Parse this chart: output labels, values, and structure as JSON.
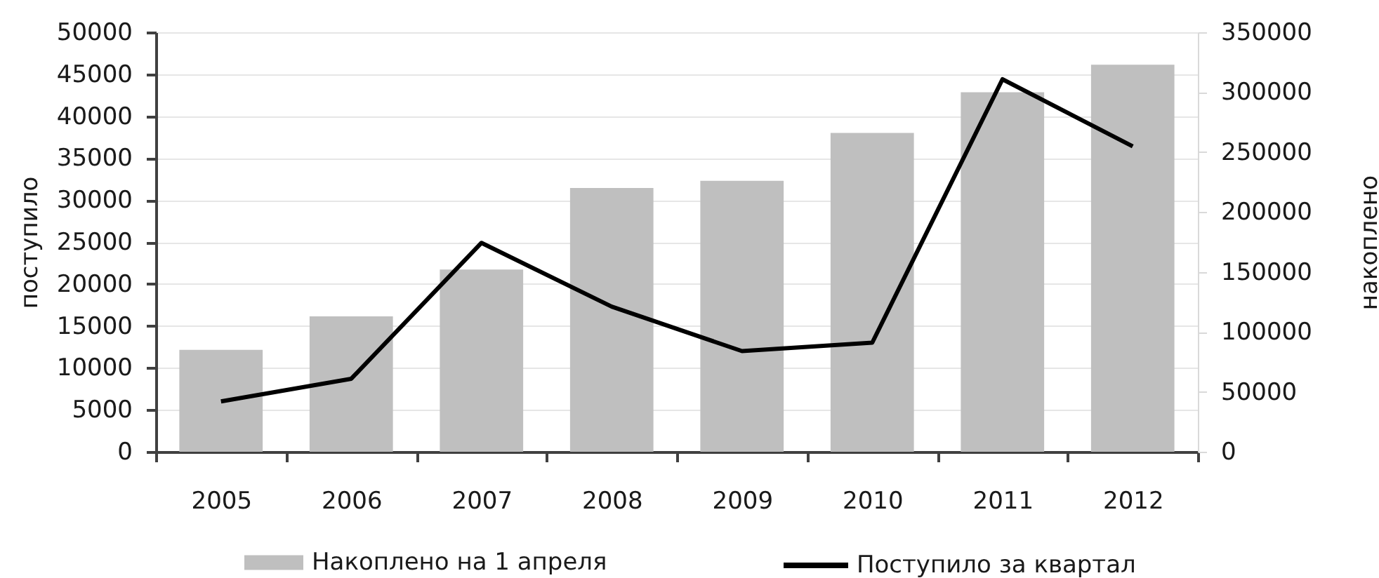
{
  "chart_data": {
    "type": "bar",
    "ylabel": "поступило",
    "y2label": "накоплено",
    "categories": [
      "2005",
      "2006",
      "2007",
      "2008",
      "2009",
      "2010",
      "2011",
      "2012"
    ],
    "series": [
      {
        "name": "Накоплено на 1 апреля",
        "axis": "y2",
        "color": "#bfbfbf",
        "values": [
          85000,
          113000,
          152000,
          220000,
          226000,
          266000,
          300000,
          323000
        ]
      },
      {
        "name": "Поступило за квартал",
        "type": "line",
        "color": "#000000",
        "values": [
          6000,
          8700,
          24900,
          17300,
          12000,
          13000,
          44400,
          36400
        ]
      }
    ],
    "ylim": [
      0,
      50000
    ],
    "yticks": [
      0,
      5000,
      10000,
      15000,
      20000,
      25000,
      30000,
      35000,
      40000,
      45000,
      50000
    ],
    "y2lim": [
      0,
      350000
    ],
    "y2ticks": [
      0,
      50000,
      100000,
      150000,
      200000,
      250000,
      300000,
      350000
    ],
    "grid": "y",
    "legend": "bottom",
    "line_style": "solid"
  }
}
